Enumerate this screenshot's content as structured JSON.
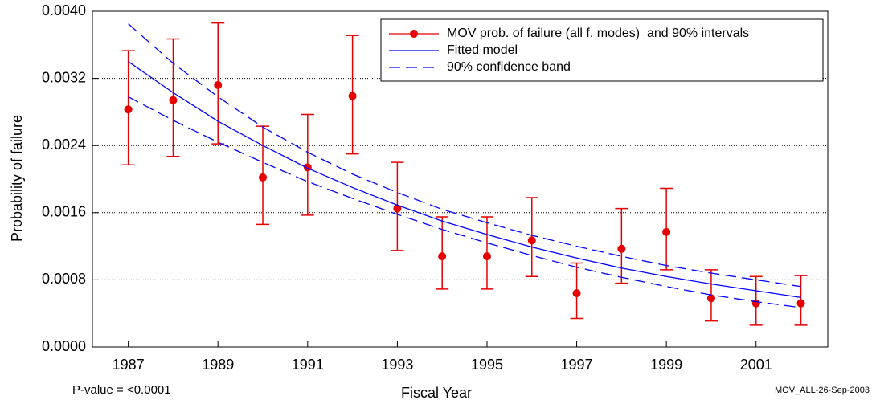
{
  "chart_data": {
    "type": "line",
    "x_label": "Fiscal Year",
    "y_label": "Probability of failure",
    "annotations": [
      "P-value = <0.0001",
      "MOV_ALL-26-Sep-2003"
    ],
    "x": [
      1987,
      1988,
      1989,
      1990,
      1991,
      1992,
      1993,
      1994,
      1995,
      1996,
      1997,
      1998,
      1999,
      2000,
      2001,
      2002
    ],
    "xlim": [
      1986.2,
      2002.6
    ],
    "xticks": [
      1987,
      1989,
      1991,
      1993,
      1995,
      1997,
      1999,
      2001
    ],
    "ylim": [
      0,
      0.004
    ],
    "yticks": [
      {
        "value": 0,
        "label": "0.0000"
      },
      {
        "value": 0.0008,
        "label": "0.0008"
      },
      {
        "value": 0.0016,
        "label": "0.0016"
      },
      {
        "value": 0.0024,
        "label": "0.0024"
      },
      {
        "value": 0.0032,
        "label": "0.0032"
      },
      {
        "value": 0.004,
        "label": "0.0040"
      }
    ],
    "grid": true,
    "legend": "upper right",
    "series": [
      {
        "name": "MOV prob. of failure (all f. modes)  and 90% intervals",
        "color": "#e60000",
        "style": "points",
        "values": [
          0.00283,
          0.00294,
          0.00312,
          0.00202,
          0.00214,
          0.00299,
          0.00165,
          0.00108,
          0.00108,
          0.00127,
          0.00064,
          0.00117,
          0.00137,
          0.00058,
          0.00052,
          0.00052
        ],
        "lower": [
          0.00217,
          0.00227,
          0.00242,
          0.00146,
          0.00157,
          0.0023,
          0.00115,
          0.00069,
          0.00069,
          0.00084,
          0.00034,
          0.00076,
          0.00092,
          0.00031,
          0.00026,
          0.00026
        ],
        "upper": [
          0.00353,
          0.00367,
          0.00386,
          0.00263,
          0.00277,
          0.00371,
          0.0022,
          0.00155,
          0.00155,
          0.00178,
          0.001,
          0.00165,
          0.00189,
          0.00092,
          0.00084,
          0.00085
        ]
      },
      {
        "name": "Fitted model",
        "color": "#0000ff",
        "style": "solid",
        "values": [
          0.0034,
          0.00303,
          0.00269,
          0.0024,
          0.00213,
          0.0019,
          0.00169,
          0.0015,
          0.00134,
          0.00119,
          0.00106,
          0.00094,
          0.00084,
          0.00075,
          0.00067,
          0.00059
        ]
      },
      {
        "name": "90% confidence band",
        "color": "#0000ff",
        "style": "dashed",
        "lower": [
          0.00298,
          0.0027,
          0.00244,
          0.0022,
          0.00197,
          0.00177,
          0.00158,
          0.0014,
          0.00124,
          0.00109,
          0.00095,
          0.00083,
          0.00072,
          0.00062,
          0.00054,
          0.00047
        ],
        "upper": [
          0.00385,
          0.00338,
          0.00298,
          0.00262,
          0.00232,
          0.00206,
          0.00184,
          0.00164,
          0.00148,
          0.00133,
          0.0012,
          0.00108,
          0.00097,
          0.00088,
          0.0008,
          0.00072
        ]
      }
    ]
  }
}
